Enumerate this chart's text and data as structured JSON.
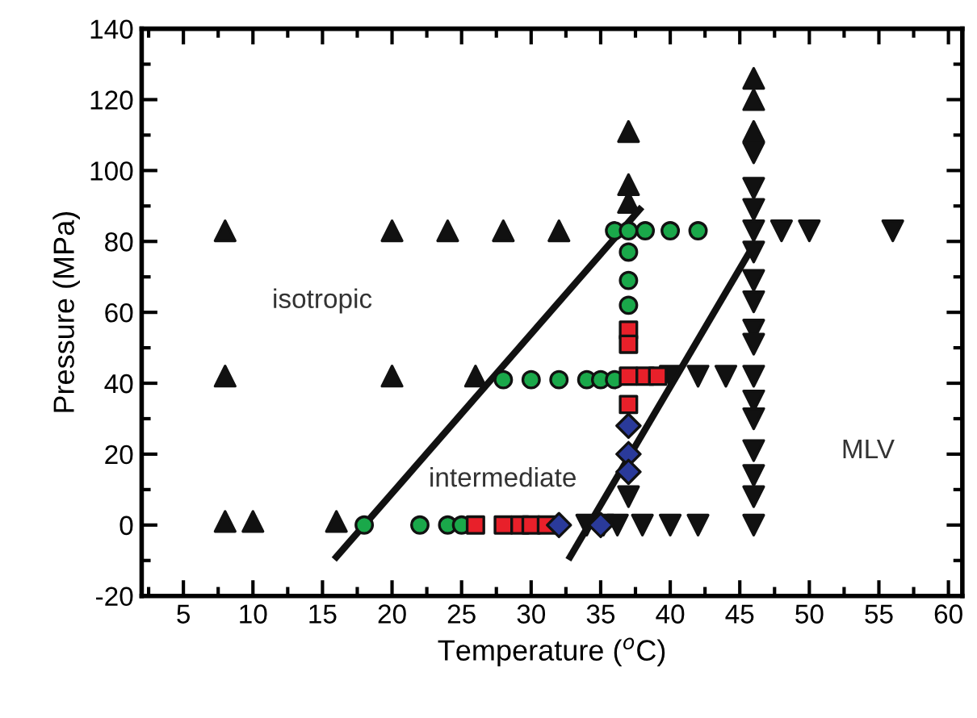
{
  "chart_data": {
    "type": "scatter",
    "xlabel": "Temperature ($^{o}$C)",
    "ylabel": "Pressure (MPa)",
    "xlim": [
      2,
      61
    ],
    "ylim": [
      -20,
      140
    ],
    "xticks": [
      {
        "value": 2.5,
        "label": null
      },
      5,
      {
        "value": 7.5,
        "label": null
      },
      10,
      {
        "value": 12.5,
        "label": null
      },
      15,
      {
        "value": 17.5,
        "label": null
      },
      20,
      {
        "value": 22.5,
        "label": null
      },
      25,
      {
        "value": 27.5,
        "label": null
      },
      30,
      {
        "value": 32.5,
        "label": null
      },
      35,
      {
        "value": 37.5,
        "label": null
      },
      40,
      {
        "value": 42.5,
        "label": null
      },
      45,
      {
        "value": 47.5,
        "label": null
      },
      50,
      {
        "value": 52.5,
        "label": null
      },
      55,
      {
        "value": 57.5,
        "label": null
      },
      60
    ],
    "yticks": [
      -20,
      {
        "value": -10,
        "label": null
      },
      0,
      {
        "value": 10,
        "label": null
      },
      20,
      {
        "value": 30,
        "label": null
      },
      40,
      {
        "value": 50,
        "label": null
      },
      60,
      {
        "value": 70,
        "label": null
      },
      80,
      {
        "value": 90,
        "label": null
      },
      100,
      {
        "value": 110,
        "label": null
      },
      120,
      {
        "value": 130,
        "label": null
      },
      140
    ],
    "grid": false,
    "series": [
      {
        "type": "line",
        "color": "#111111",
        "x": [
          16,
          37.8
        ],
        "values": [
          -9,
          89
        ],
        "marker": "none",
        "line_style": "solid"
      },
      {
        "type": "line",
        "color": "#111111",
        "x": [
          32.8,
          46
        ],
        "values": [
          -9,
          79
        ],
        "marker": "none",
        "line_style": "solid"
      },
      {
        "color": "#111111",
        "marker": "triangle",
        "x": [
          8,
          20,
          24,
          28,
          32,
          37,
          37,
          37,
          46,
          46,
          46,
          8,
          20,
          26,
          8,
          10,
          16
        ],
        "values": [
          83,
          83,
          83,
          83,
          83,
          111,
          96,
          91,
          126,
          120,
          111,
          42,
          42,
          42,
          1,
          1,
          1
        ]
      },
      {
        "color": "#111111",
        "marker": "triangle_down",
        "x": [
          46,
          46,
          46,
          46,
          46,
          46,
          46,
          46,
          46,
          46,
          46,
          46,
          46,
          46,
          46,
          46,
          48,
          50,
          56,
          40,
          42,
          44,
          37,
          34,
          35.2,
          36.2,
          38,
          40,
          42
        ],
        "values": [
          105,
          95,
          89,
          83,
          77,
          69,
          63,
          55,
          51,
          42,
          35,
          30,
          21,
          14,
          8,
          0,
          83,
          83,
          83,
          42,
          42,
          42,
          8,
          0,
          0,
          0,
          0,
          0,
          0
        ]
      },
      {
        "color": "#1aa84a",
        "marker": "circle",
        "x": [
          36,
          37,
          38.2,
          40,
          42,
          37,
          37,
          37,
          28,
          30,
          32,
          34,
          35,
          36,
          18,
          22,
          24,
          25
        ],
        "values": [
          83,
          83,
          83,
          83,
          83,
          77,
          69,
          62,
          41,
          41,
          41,
          41,
          41,
          41,
          0,
          0,
          0,
          0
        ]
      },
      {
        "color": "#e8202a",
        "marker": "square",
        "x": [
          37,
          37,
          37,
          37,
          38.2,
          39.1,
          26,
          28,
          29.2,
          30,
          31.1
        ],
        "values": [
          55,
          51,
          42,
          34,
          42,
          42,
          0,
          0,
          0,
          0,
          0
        ]
      },
      {
        "color": "#2a3a9a",
        "marker": "diamond",
        "x": [
          37,
          37,
          37,
          32,
          35
        ],
        "values": [
          28,
          20,
          15,
          0,
          0
        ]
      }
    ],
    "annotations": [
      "isotropic",
      "intermediate",
      "MLV"
    ]
  }
}
